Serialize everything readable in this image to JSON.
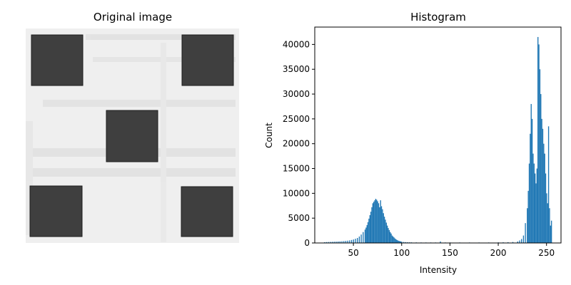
{
  "figure": {
    "left_title": "Original image",
    "right_title": "Histogram"
  },
  "image_panel": {
    "background_color": "#efefef",
    "square_color": "#3f3f3f",
    "square_border_color": "#1e1e1e",
    "square_count": 5
  },
  "chart_data": {
    "type": "bar",
    "title": "Histogram",
    "xlabel": "Intensity",
    "ylabel": "Count",
    "xlim": [
      10,
      265
    ],
    "ylim": [
      0,
      43500
    ],
    "xticks": [
      50,
      100,
      150,
      200,
      250
    ],
    "yticks": [
      0,
      5000,
      10000,
      15000,
      20000,
      25000,
      30000,
      35000,
      40000
    ],
    "bar_color": "#1f77b4",
    "grid": false,
    "series": [
      {
        "x": [
          20,
          22,
          24,
          26,
          28,
          30,
          32,
          34,
          36,
          38,
          40,
          42,
          44,
          46,
          48,
          50,
          52,
          54,
          56,
          58,
          60,
          62,
          63,
          64,
          65,
          66,
          67,
          68,
          69,
          70,
          71,
          72,
          73,
          74,
          75,
          76,
          77,
          78,
          79,
          80,
          81,
          82,
          83,
          84,
          85,
          86,
          87,
          88,
          89,
          90,
          91,
          92,
          93,
          94,
          95,
          96,
          97,
          98,
          99,
          100,
          102,
          104,
          106,
          108,
          110,
          115,
          120,
          125,
          130,
          135,
          140,
          145,
          150,
          160,
          170,
          180,
          190,
          200,
          205,
          210,
          215,
          220,
          222,
          224,
          226,
          228,
          230,
          231,
          232,
          233,
          234,
          235,
          236,
          237,
          238,
          239,
          240,
          241,
          242,
          243,
          244,
          245,
          246,
          247,
          248,
          249,
          250,
          251,
          252,
          253,
          254,
          255
        ],
        "values": [
          150,
          180,
          200,
          220,
          240,
          260,
          280,
          300,
          320,
          350,
          380,
          420,
          460,
          520,
          600,
          700,
          850,
          1000,
          1300,
          1700,
          2200,
          2700,
          3100,
          3600,
          4200,
          4900,
          5600,
          6300,
          7200,
          8000,
          8300,
          8600,
          8900,
          8700,
          8400,
          8000,
          7200,
          8600,
          7400,
          6800,
          6000,
          5300,
          4700,
          4100,
          3500,
          3000,
          2600,
          2200,
          1900,
          1500,
          1300,
          1100,
          900,
          750,
          600,
          500,
          420,
          350,
          300,
          250,
          200,
          170,
          150,
          130,
          120,
          110,
          100,
          100,
          100,
          100,
          300,
          100,
          100,
          100,
          100,
          100,
          100,
          120,
          130,
          150,
          200,
          300,
          500,
          800,
          1500,
          4000,
          7000,
          10500,
          16000,
          22000,
          28000,
          25000,
          18000,
          16000,
          14000,
          12000,
          15000,
          41500,
          40000,
          35000,
          30000,
          25000,
          23000,
          20000,
          18000,
          14000,
          10000,
          8000,
          23500,
          7000,
          3500,
          4500
        ]
      }
    ]
  }
}
